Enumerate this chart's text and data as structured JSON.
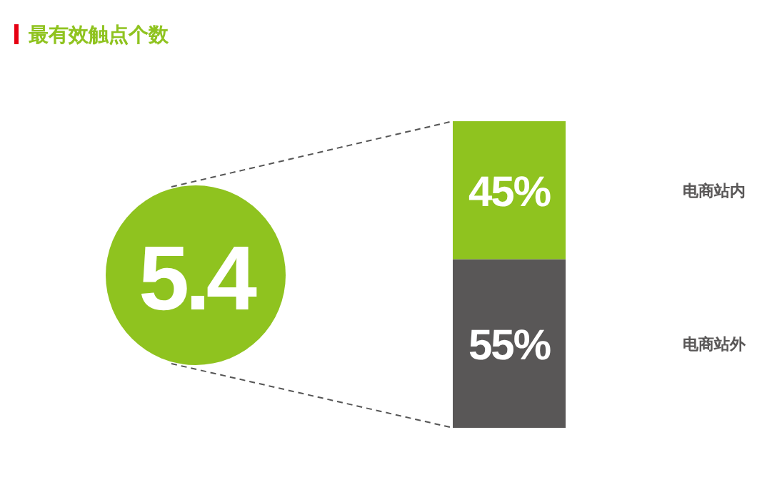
{
  "chart_data": {
    "type": "bar",
    "stacked": true,
    "title": "最有效触点个数",
    "categories": [
      null
    ],
    "series": [
      {
        "name": "电商站外",
        "color": "#595757",
        "values": [
          55
        ],
        "value_labels": [
          "55%"
        ]
      },
      {
        "name": "电商站内",
        "color": "#8fc31f",
        "values": [
          45
        ],
        "value_labels": [
          "45%"
        ]
      }
    ],
    "annotations": [
      "5.4"
    ],
    "legend": false
  }
}
